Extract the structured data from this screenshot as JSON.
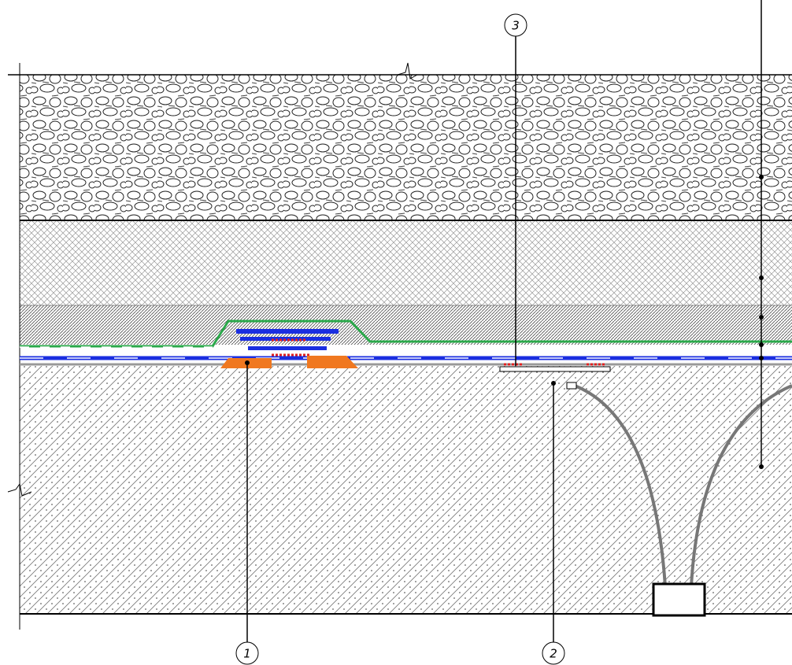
{
  "callouts": [
    {
      "label": "1"
    },
    {
      "label": "2"
    },
    {
      "label": "3"
    }
  ]
}
